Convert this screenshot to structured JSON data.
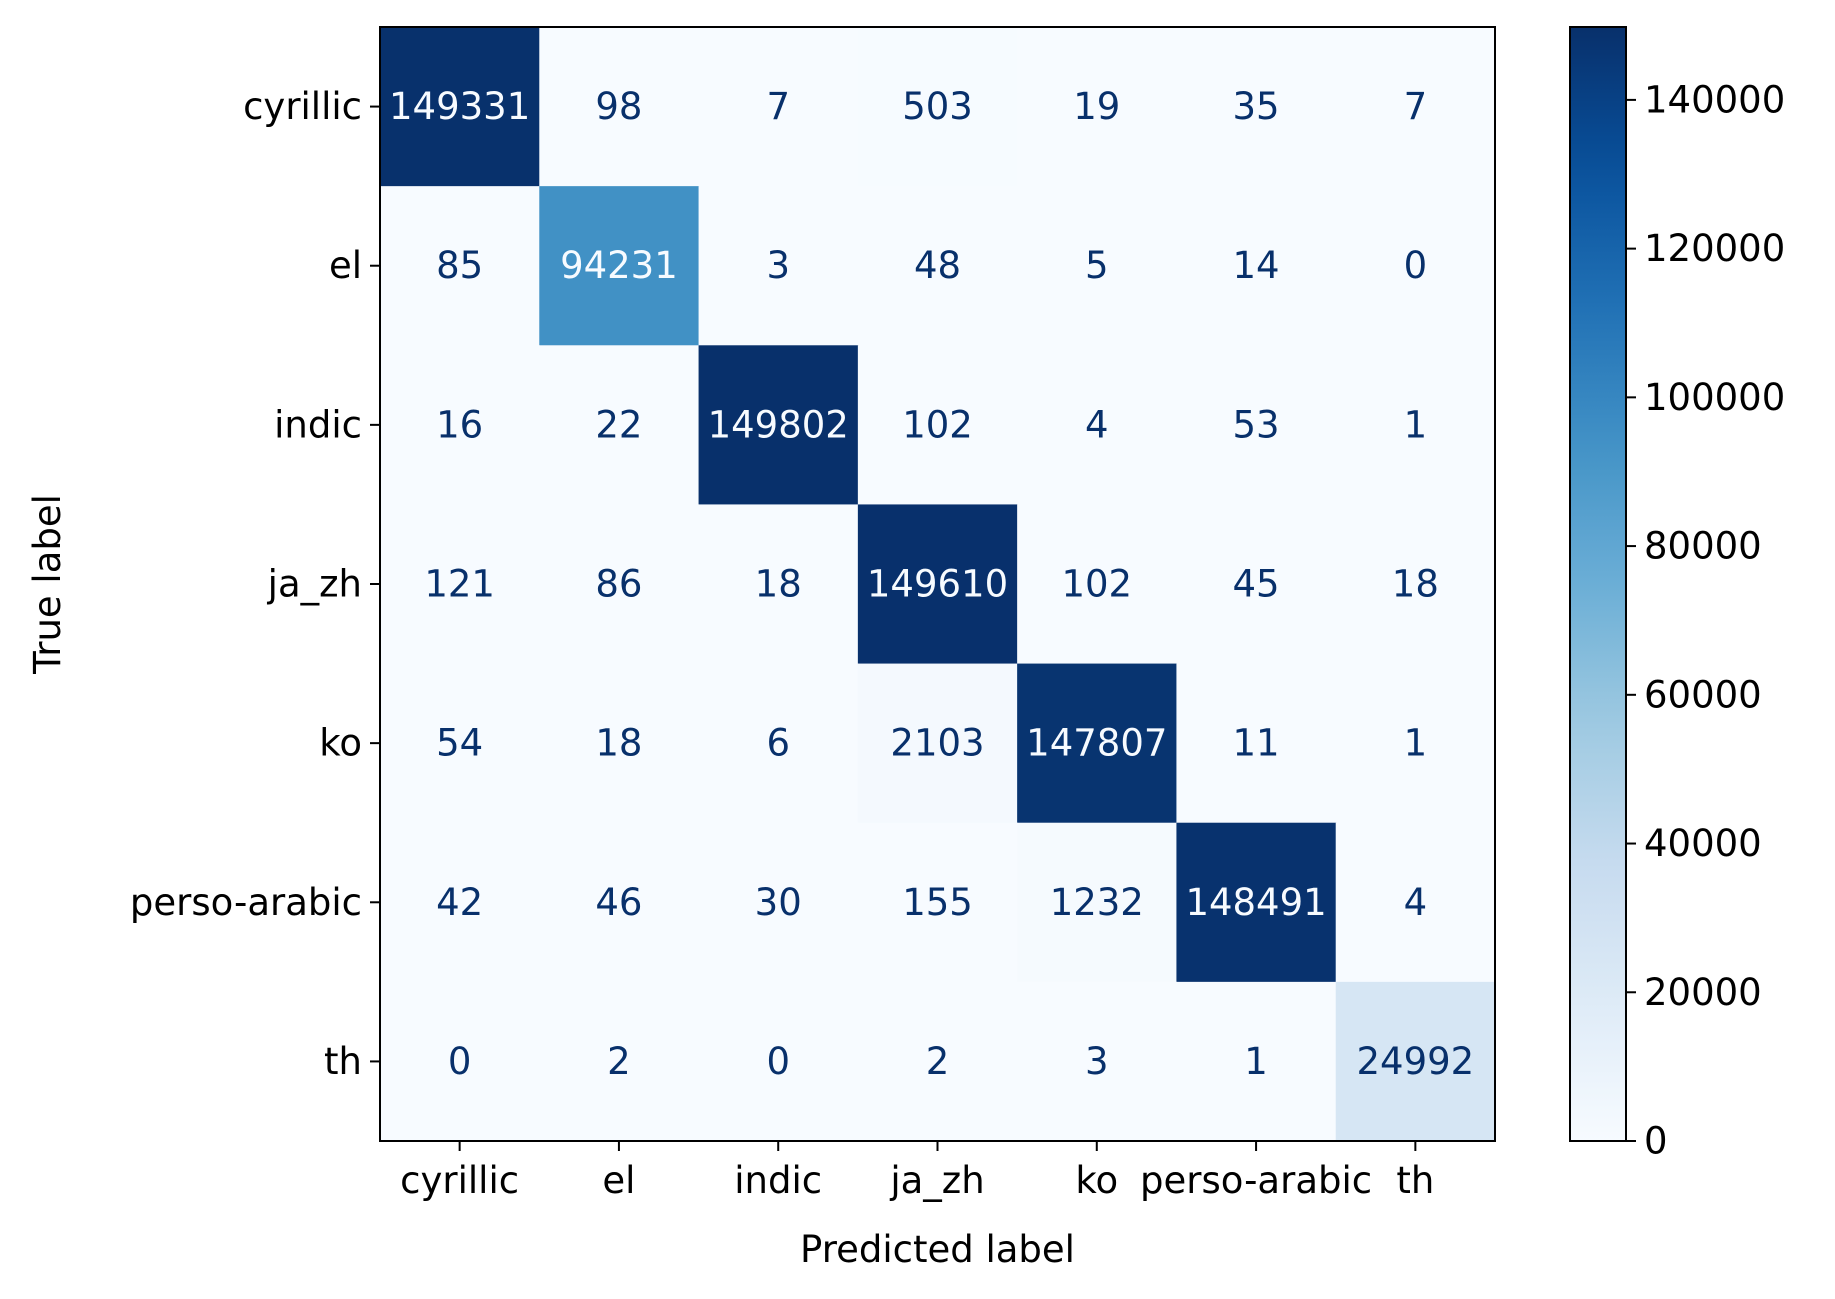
{
  "chart_data": {
    "type": "heatmap",
    "colormap": "Blues",
    "title": "",
    "xlabel": "Predicted label",
    "ylabel": "True label",
    "x_categories": [
      "cyrillic",
      "el",
      "indic",
      "ja_zh",
      "ko",
      "perso-arabic",
      "th"
    ],
    "y_categories": [
      "cyrillic",
      "el",
      "indic",
      "ja_zh",
      "ko",
      "perso-arabic",
      "th"
    ],
    "values": [
      [
        149331,
        98,
        7,
        503,
        19,
        35,
        7
      ],
      [
        85,
        94231,
        3,
        48,
        5,
        14,
        0
      ],
      [
        16,
        22,
        149802,
        102,
        4,
        53,
        1
      ],
      [
        121,
        86,
        18,
        149610,
        102,
        45,
        18
      ],
      [
        54,
        18,
        6,
        2103,
        147807,
        11,
        1
      ],
      [
        42,
        46,
        30,
        155,
        1232,
        148491,
        4
      ],
      [
        0,
        2,
        0,
        2,
        3,
        1,
        24992
      ]
    ],
    "color_range": [
      0,
      149802
    ],
    "colorbar": {
      "ticks": [
        0,
        20000,
        40000,
        60000,
        80000,
        100000,
        120000,
        140000
      ],
      "tick_labels": [
        "0",
        "20000",
        "40000",
        "60000",
        "80000",
        "100000",
        "120000",
        "140000"
      ]
    },
    "grid": false,
    "legend": "colorbar-right"
  }
}
